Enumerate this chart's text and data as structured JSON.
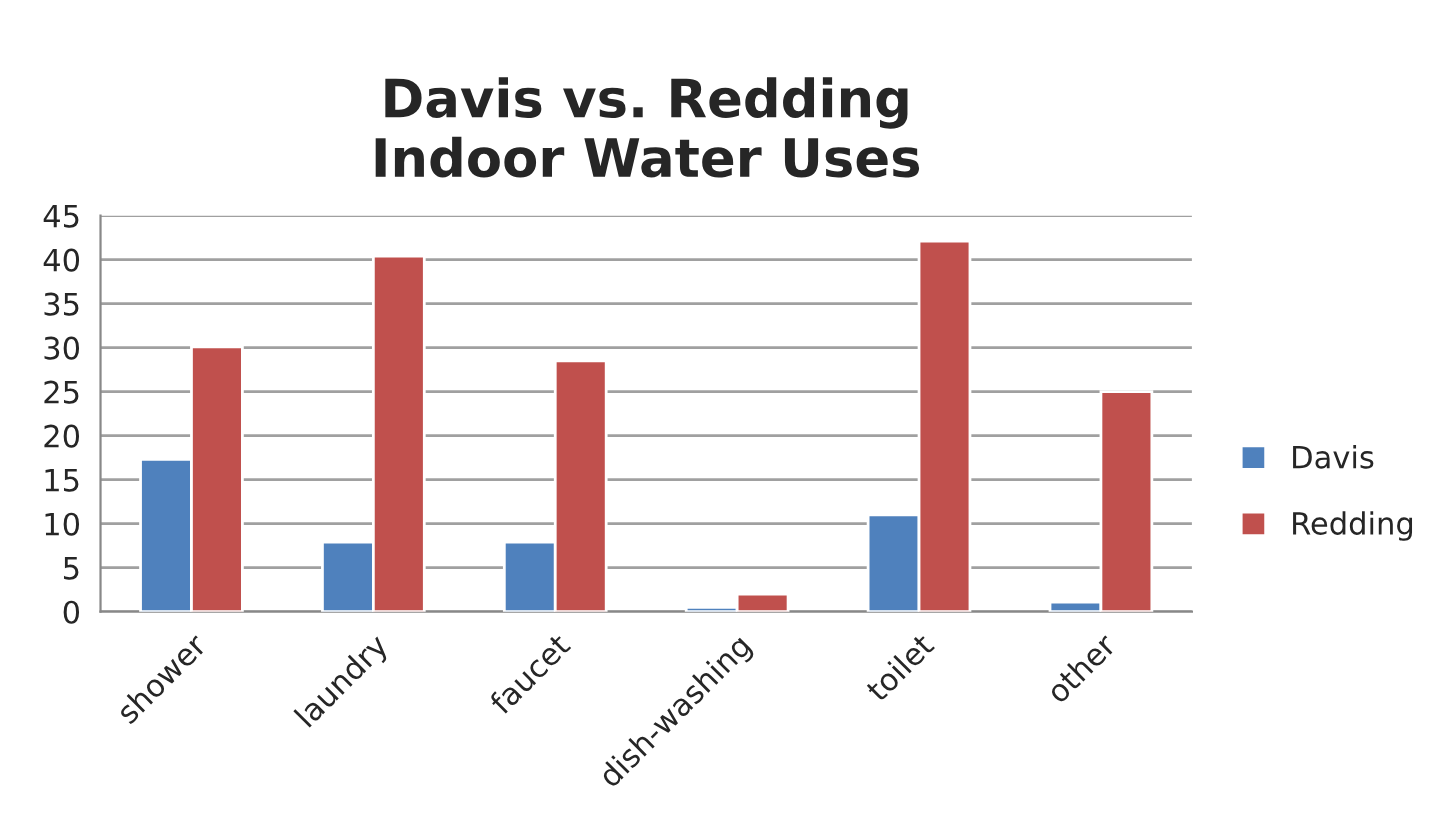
{
  "chart_data": {
    "type": "bar",
    "title": "Davis vs. Redding\nIndoor Water Uses",
    "categories": [
      "shower",
      "laundry",
      "faucet",
      "dish-washing",
      "toilet",
      "other"
    ],
    "series": [
      {
        "name": "Davis",
        "color": "#4f81bd",
        "values": [
          17.3,
          7.9,
          7.9,
          0.5,
          11,
          1.1
        ]
      },
      {
        "name": "Redding",
        "color": "#c0504d",
        "values": [
          30.1,
          40.4,
          28.5,
          2.0,
          42.1,
          25.0
        ]
      }
    ],
    "ylim": [
      0,
      45
    ],
    "yticks": [
      0,
      5,
      10,
      15,
      20,
      25,
      30,
      35,
      40,
      45
    ],
    "grid": "y",
    "legend": "right"
  }
}
